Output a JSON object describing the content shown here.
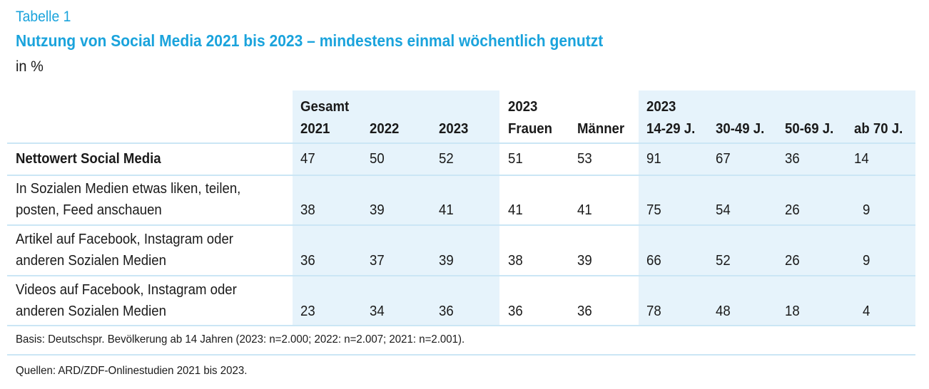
{
  "table": {
    "label": "Tabelle 1",
    "title": "Nutzung von Social Media 2021 bis 2023 – mindestens einmal wöchentlich genutzt",
    "unit": "in %",
    "group_headers": [
      "Gesamt",
      "2023",
      "2023"
    ],
    "columns": [
      "2021",
      "2022",
      "2023",
      "Frauen",
      "Männer",
      "14-29 J.",
      "30-49 J.",
      "50-69 J.",
      "ab 70 J."
    ],
    "rows": [
      {
        "label_lines": [
          "Nettowert Social Media"
        ],
        "values": [
          "47",
          "50",
          "52",
          "51",
          "53",
          "91",
          "67",
          "36",
          "14"
        ]
      },
      {
        "label_lines": [
          "In Sozialen Medien etwas liken, teilen,",
          "posten, Feed anschauen"
        ],
        "values": [
          "38",
          "39",
          "41",
          "41",
          "41",
          "75",
          "54",
          "26",
          "9"
        ]
      },
      {
        "label_lines": [
          "Artikel auf Facebook, Instagram oder",
          "anderen Sozialen Medien"
        ],
        "values": [
          "36",
          "37",
          "39",
          "38",
          "39",
          "66",
          "52",
          "26",
          "9"
        ]
      },
      {
        "label_lines": [
          "Videos auf Facebook, Instagram oder",
          "anderen Sozialen Medien"
        ],
        "values": [
          "23",
          "34",
          "36",
          "36",
          "36",
          "78",
          "48",
          "18",
          "4"
        ]
      }
    ],
    "basis": "Basis: Deutschspr. Bevölkerung ab 14 Jahren (2023: n=2.000; 2022: n=2.007; 2021: n=2.001).",
    "source": "Quellen: ARD/ZDF-Onlinestudien 2021 bis 2023."
  },
  "colors": {
    "accent": "#1aa3dc",
    "band": "#e6f3fb",
    "rule": "#cbe6f5",
    "text": "#1a1a1a"
  }
}
